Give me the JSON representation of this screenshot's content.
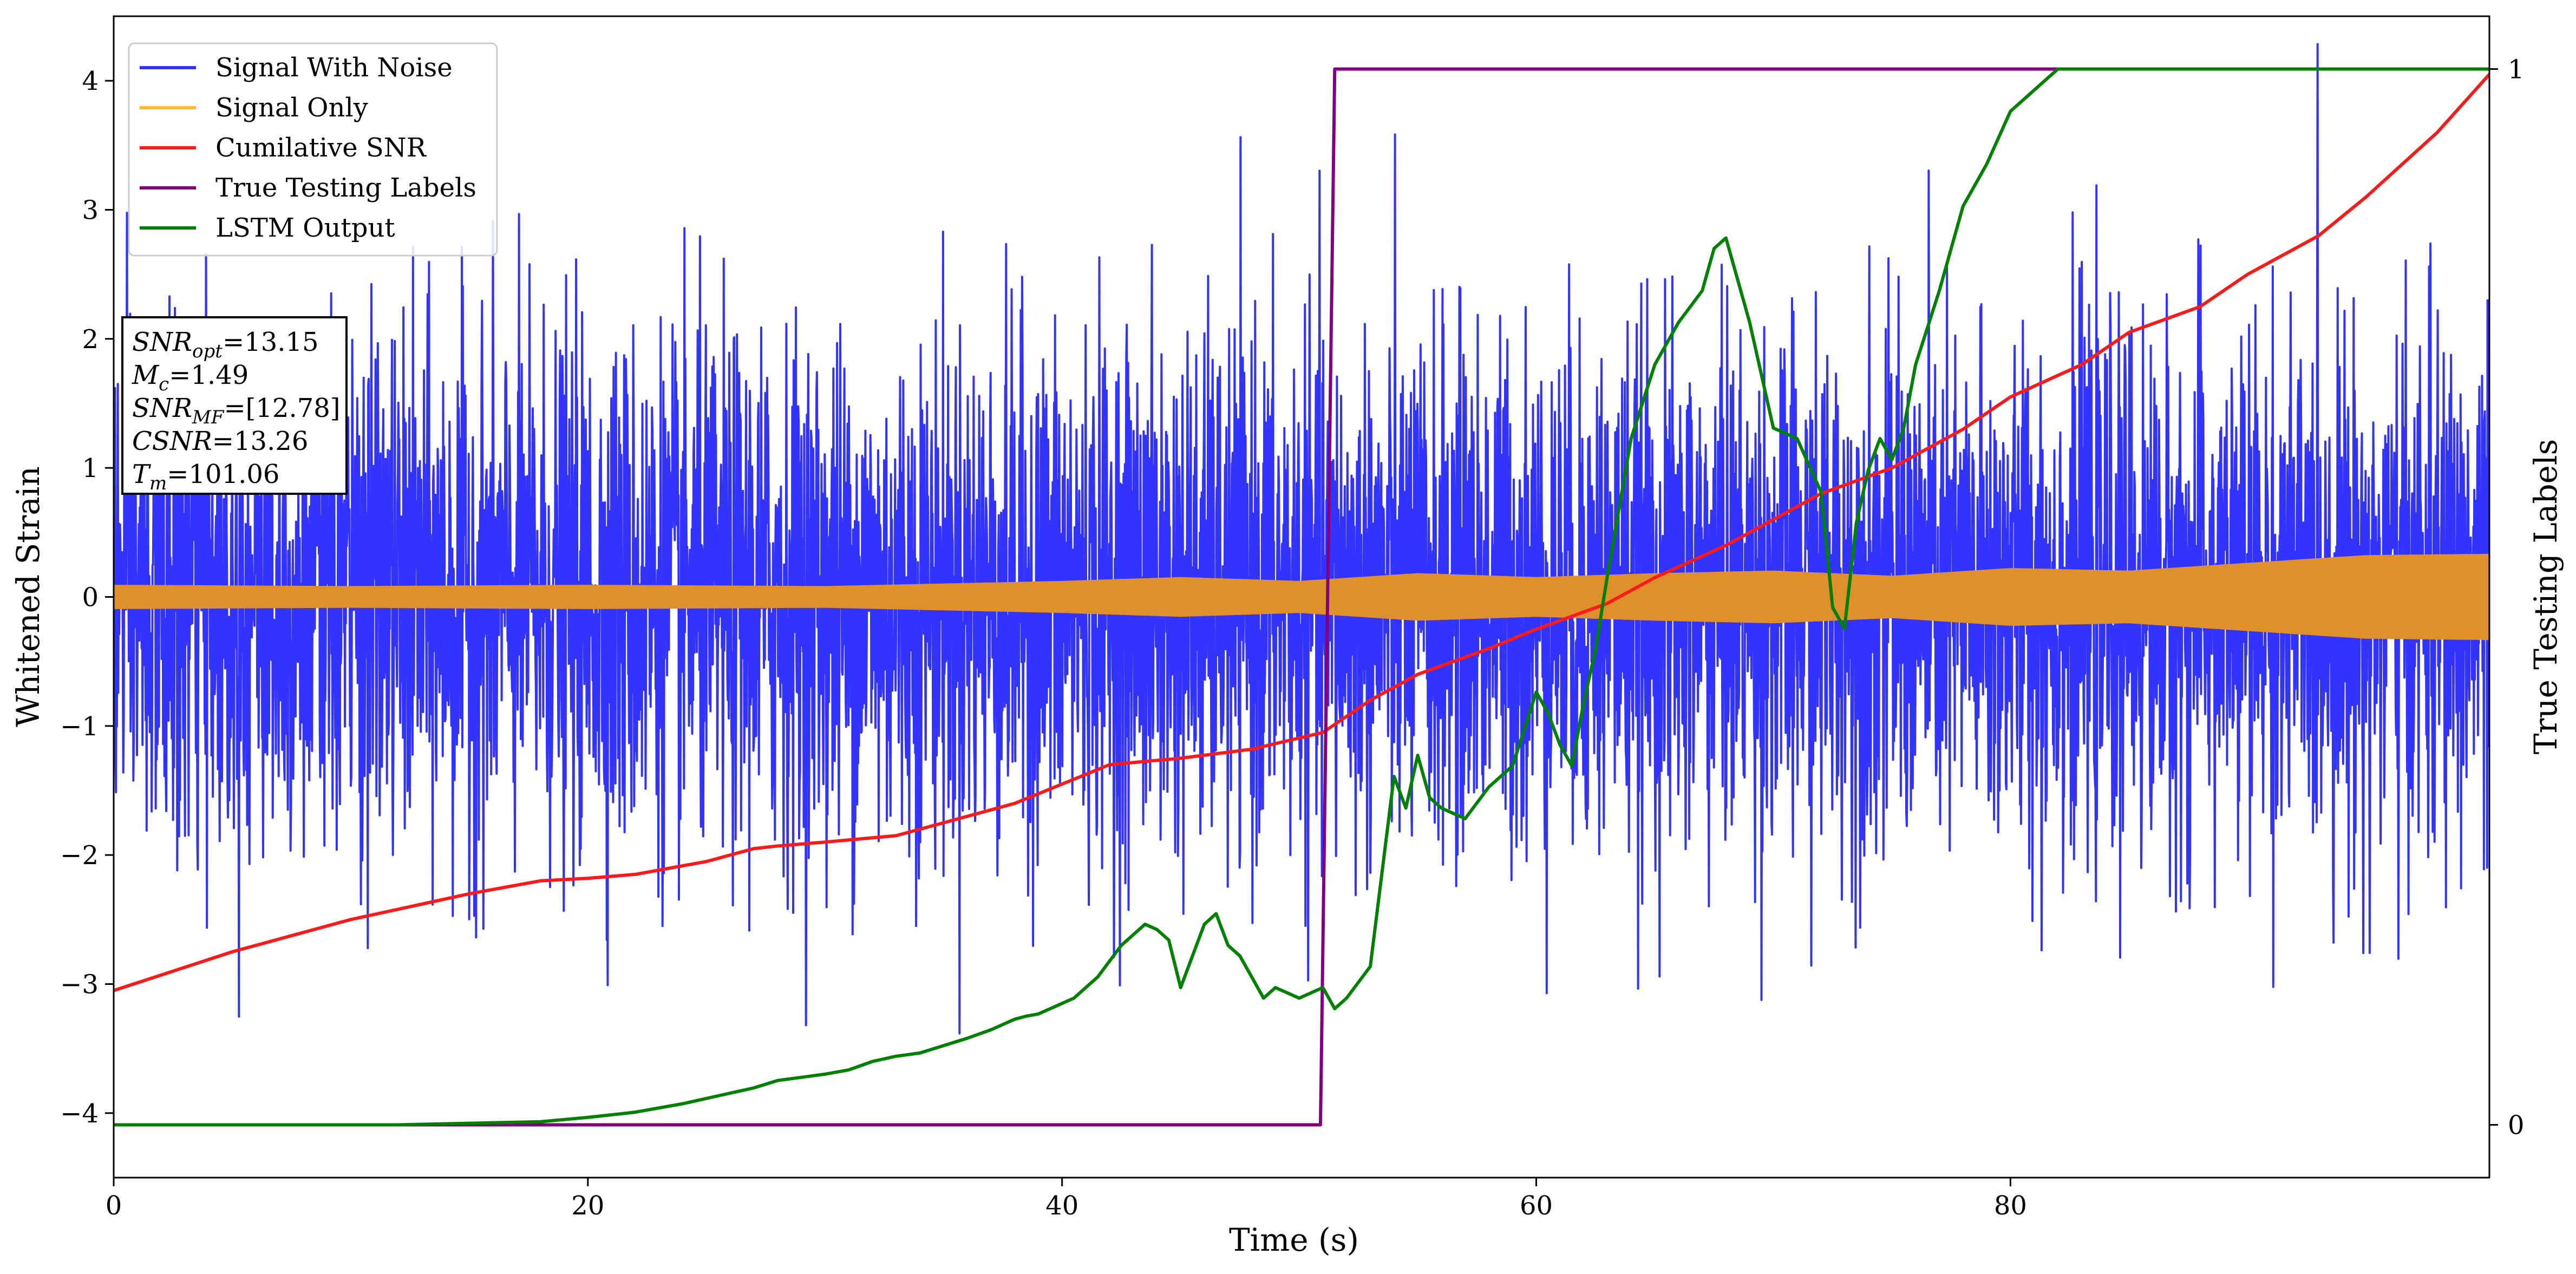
{
  "chart_data": {
    "type": "line",
    "xlabel": "Time (s)",
    "ylabel": "Whitened Strain",
    "y2label": "True Testing Labels",
    "xlim": [
      0,
      100.2
    ],
    "ylim": [
      -4.5,
      4.5
    ],
    "y2lim": [
      -0.05,
      1.05
    ],
    "x_ticks": [
      0,
      20,
      40,
      60,
      80
    ],
    "y_ticks": [
      -4,
      -3,
      -2,
      -1,
      0,
      1,
      2,
      3,
      4
    ],
    "y2_ticks": [
      0,
      1
    ],
    "legend": {
      "position": "top-left",
      "entries": [
        {
          "label": "Signal With Noise",
          "color": "#3333ff"
        },
        {
          "label": "Signal Only",
          "color": "#ffb833"
        },
        {
          "label": "Cumilative SNR",
          "color": "#ff1a1a"
        },
        {
          "label": "True Testing Labels",
          "color": "#800080"
        },
        {
          "label": "LSTM Output",
          "color": "#008000"
        }
      ]
    },
    "annotation": {
      "lines": [
        {
          "sym": "SNR",
          "sub": "opt",
          "value": "=13.15"
        },
        {
          "sym": "M",
          "sub": "c",
          "value": "=1.49"
        },
        {
          "sym": "SNR",
          "sub": "MF",
          "value": "=[12.78]"
        },
        {
          "sym": "CSNR",
          "sub": "",
          "value": "=13.26"
        },
        {
          "sym": "T",
          "sub": "m",
          "value": "=101.06"
        }
      ]
    },
    "series": [
      {
        "name": "Signal With Noise",
        "color": "#3333ff",
        "axis": "left",
        "style": "noise",
        "noise_sigma": 1.0,
        "x_range": [
          0,
          100.2
        ]
      },
      {
        "name": "Signal Only",
        "color": "#e0902a",
        "axis": "left",
        "style": "envelope",
        "x": [
          0,
          10,
          20,
          30,
          40,
          45,
          50,
          55,
          60,
          65,
          70,
          75,
          80,
          85,
          90,
          95,
          100.2
        ],
        "envelope": [
          0.09,
          0.08,
          0.09,
          0.08,
          0.12,
          0.15,
          0.12,
          0.18,
          0.15,
          0.18,
          0.2,
          0.16,
          0.22,
          0.2,
          0.26,
          0.32,
          0.33
        ]
      },
      {
        "name": "Cumilative SNR",
        "color": "#ff1a1a",
        "axis": "left",
        "x": [
          0,
          5,
          10,
          15,
          18,
          20,
          22,
          25,
          27,
          28,
          30,
          33,
          35,
          38,
          40,
          42,
          45,
          48,
          51,
          53,
          55,
          58,
          60,
          63,
          65,
          68,
          70,
          72,
          75,
          78,
          80,
          83,
          85,
          88,
          90,
          93,
          95,
          98,
          100.2
        ],
        "values": [
          -3.05,
          -2.75,
          -2.5,
          -2.3,
          -2.2,
          -2.18,
          -2.15,
          -2.05,
          -1.95,
          -1.93,
          -1.9,
          -1.85,
          -1.75,
          -1.6,
          -1.45,
          -1.3,
          -1.25,
          -1.18,
          -1.05,
          -0.8,
          -0.6,
          -0.4,
          -0.25,
          -0.05,
          0.15,
          0.4,
          0.6,
          0.8,
          1.0,
          1.3,
          1.55,
          1.8,
          2.05,
          2.25,
          2.5,
          2.8,
          3.1,
          3.6,
          4.05
        ]
      },
      {
        "name": "True Testing Labels",
        "color": "#800080",
        "axis": "right",
        "x": [
          0,
          50.9,
          51.5,
          100.2
        ],
        "values": [
          0,
          0,
          1,
          1
        ]
      },
      {
        "name": "LSTM Output",
        "color": "#008000",
        "axis": "right",
        "x": [
          0,
          12,
          18,
          20,
          22,
          24,
          26,
          27,
          28,
          29,
          30,
          31,
          32,
          33,
          34,
          35,
          36,
          37,
          37.5,
          38,
          38.5,
          39,
          39.5,
          40,
          40.5,
          41,
          41.5,
          42,
          42.5,
          43,
          43.5,
          44,
          44.5,
          45,
          45.5,
          46,
          46.5,
          47,
          47.5,
          48,
          48.5,
          49,
          50,
          51,
          51.5,
          52,
          53,
          54,
          54.5,
          55,
          55.5,
          56,
          57,
          58,
          59,
          60,
          60.5,
          61,
          61.5,
          62,
          62.5,
          63,
          64,
          65,
          66,
          67,
          67.5,
          68,
          69,
          70,
          71,
          72,
          72.5,
          73,
          73.5,
          74,
          74.5,
          75,
          75.5,
          76,
          77,
          78,
          79,
          80,
          81,
          82,
          84,
          86,
          90,
          95,
          100.2
        ],
        "values": [
          0,
          0,
          0.003,
          0.007,
          0.012,
          0.02,
          0.03,
          0.035,
          0.042,
          0.045,
          0.048,
          0.052,
          0.06,
          0.065,
          0.068,
          0.075,
          0.082,
          0.09,
          0.095,
          0.1,
          0.103,
          0.105,
          0.11,
          0.115,
          0.12,
          0.13,
          0.14,
          0.155,
          0.17,
          0.18,
          0.19,
          0.185,
          0.175,
          0.13,
          0.16,
          0.19,
          0.2,
          0.17,
          0.16,
          0.14,
          0.12,
          0.13,
          0.12,
          0.13,
          0.11,
          0.12,
          0.15,
          0.33,
          0.3,
          0.35,
          0.31,
          0.3,
          0.29,
          0.32,
          0.34,
          0.41,
          0.39,
          0.36,
          0.34,
          0.4,
          0.45,
          0.52,
          0.65,
          0.72,
          0.76,
          0.79,
          0.83,
          0.84,
          0.76,
          0.66,
          0.65,
          0.6,
          0.49,
          0.47,
          0.57,
          0.62,
          0.65,
          0.63,
          0.66,
          0.72,
          0.79,
          0.87,
          0.91,
          0.96,
          0.98,
          1.0,
          1.0,
          1.0,
          1.0,
          1.0,
          1.0
        ]
      }
    ]
  }
}
